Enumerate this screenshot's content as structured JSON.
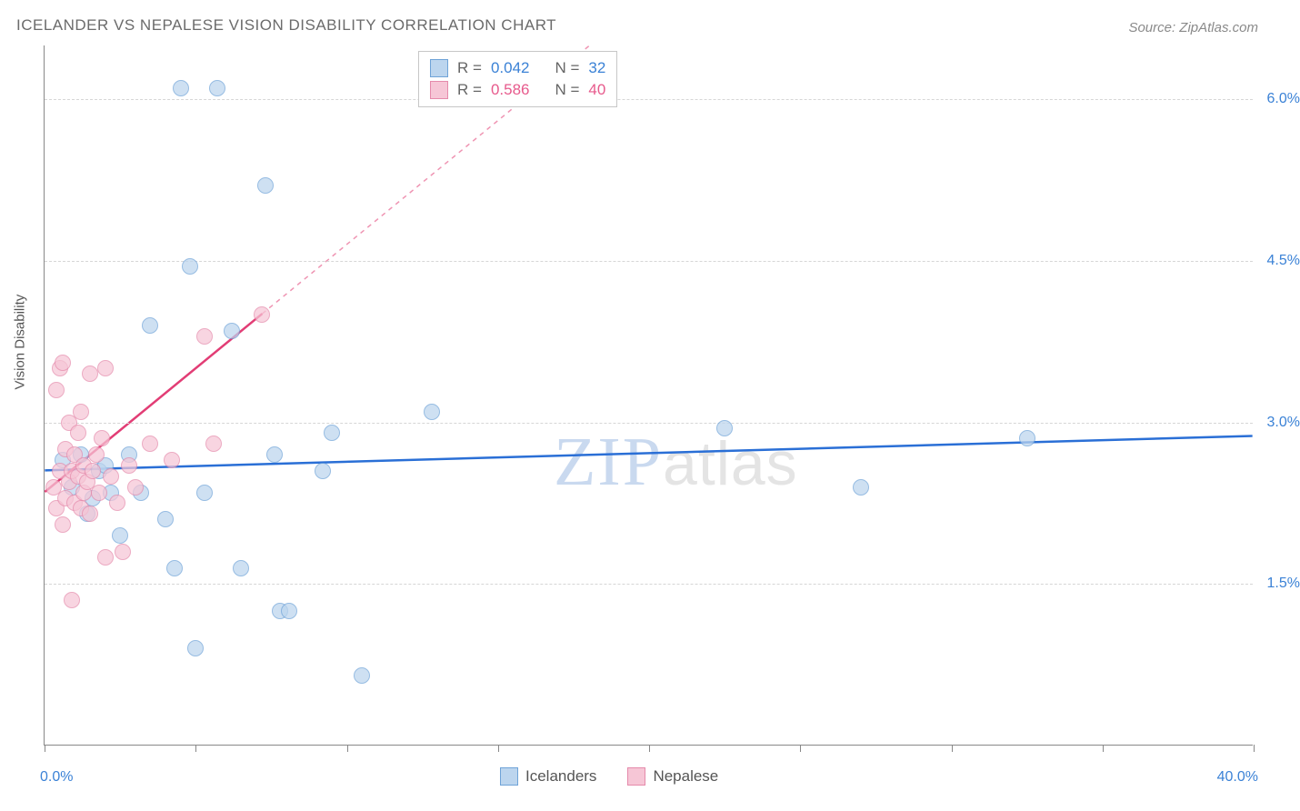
{
  "title": "ICELANDER VS NEPALESE VISION DISABILITY CORRELATION CHART",
  "source": "Source: ZipAtlas.com",
  "watermark": {
    "zip": "ZIP",
    "atlas": "atlas"
  },
  "chart": {
    "type": "scatter",
    "ylabel": "Vision Disability",
    "xlim": [
      0,
      40
    ],
    "ylim": [
      0,
      6.5
    ],
    "xtick_positions": [
      0,
      5,
      10,
      15,
      20,
      25,
      30,
      35,
      40
    ],
    "xtick_labels_shown": {
      "0": "0.0%",
      "40": "40.0%"
    },
    "ytick_positions": [
      1.5,
      3.0,
      4.5,
      6.0
    ],
    "ytick_labels": [
      "1.5%",
      "3.0%",
      "4.5%",
      "6.0%"
    ],
    "grid_color": "#d6d6d6",
    "background_color": "#ffffff",
    "axis_color": "#888888",
    "axis_label_color": "#3b82d6",
    "series": [
      {
        "name": "Icelanders",
        "r_value": "0.042",
        "n_value": "32",
        "point_fill": "#bcd5ee",
        "point_stroke": "#6fa3d8",
        "line_color": "#2a6fd6",
        "line_width": 2.5,
        "line_dash": "none",
        "line_y_intercept": 2.55,
        "line_slope": 0.008,
        "points": [
          [
            0.6,
            2.65
          ],
          [
            0.9,
            2.4
          ],
          [
            1.2,
            2.7
          ],
          [
            1.4,
            2.15
          ],
          [
            1.6,
            2.3
          ],
          [
            1.8,
            2.55
          ],
          [
            2.2,
            2.35
          ],
          [
            2.0,
            2.6
          ],
          [
            2.5,
            1.95
          ],
          [
            2.8,
            2.7
          ],
          [
            3.2,
            2.35
          ],
          [
            3.5,
            3.9
          ],
          [
            4.0,
            2.1
          ],
          [
            4.3,
            1.65
          ],
          [
            4.5,
            6.1
          ],
          [
            4.8,
            4.45
          ],
          [
            5.0,
            0.9
          ],
          [
            5.3,
            2.35
          ],
          [
            5.7,
            6.1
          ],
          [
            6.2,
            3.85
          ],
          [
            6.5,
            1.65
          ],
          [
            7.3,
            5.2
          ],
          [
            7.6,
            2.7
          ],
          [
            7.8,
            1.25
          ],
          [
            8.1,
            1.25
          ],
          [
            9.2,
            2.55
          ],
          [
            9.5,
            2.9
          ],
          [
            10.5,
            0.65
          ],
          [
            12.8,
            3.1
          ],
          [
            22.5,
            2.95
          ],
          [
            27.0,
            2.4
          ],
          [
            32.5,
            2.85
          ]
        ]
      },
      {
        "name": "Nepalese",
        "r_value": "0.586",
        "n_value": "40",
        "point_fill": "#f6c6d6",
        "point_stroke": "#e58aab",
        "line_color": "#e23d75",
        "line_width": 2.5,
        "line_solid_xmax": 7.2,
        "line_dash_after": "5,5",
        "line_y_intercept": 2.35,
        "line_slope": 0.23,
        "points": [
          [
            0.3,
            2.4
          ],
          [
            0.4,
            2.2
          ],
          [
            0.4,
            3.3
          ],
          [
            0.5,
            2.55
          ],
          [
            0.5,
            3.5
          ],
          [
            0.6,
            2.05
          ],
          [
            0.6,
            3.55
          ],
          [
            0.7,
            2.3
          ],
          [
            0.7,
            2.75
          ],
          [
            0.8,
            2.45
          ],
          [
            0.8,
            3.0
          ],
          [
            0.9,
            2.55
          ],
          [
            0.9,
            1.35
          ],
          [
            1.0,
            2.25
          ],
          [
            1.0,
            2.7
          ],
          [
            1.1,
            2.5
          ],
          [
            1.1,
            2.9
          ],
          [
            1.2,
            2.2
          ],
          [
            1.2,
            3.1
          ],
          [
            1.3,
            2.35
          ],
          [
            1.3,
            2.6
          ],
          [
            1.4,
            2.45
          ],
          [
            1.5,
            3.45
          ],
          [
            1.5,
            2.15
          ],
          [
            1.6,
            2.55
          ],
          [
            1.7,
            2.7
          ],
          [
            1.8,
            2.35
          ],
          [
            1.9,
            2.85
          ],
          [
            2.0,
            1.75
          ],
          [
            2.0,
            3.5
          ],
          [
            2.2,
            2.5
          ],
          [
            2.4,
            2.25
          ],
          [
            2.6,
            1.8
          ],
          [
            2.8,
            2.6
          ],
          [
            3.0,
            2.4
          ],
          [
            3.5,
            2.8
          ],
          [
            4.2,
            2.65
          ],
          [
            5.3,
            3.8
          ],
          [
            5.6,
            2.8
          ],
          [
            7.2,
            4.0
          ]
        ]
      }
    ]
  },
  "legend_top_labels": {
    "r": "R =",
    "n": "N ="
  },
  "legend_bottom": [
    {
      "label": "Icelanders",
      "fill": "#bcd5ee",
      "stroke": "#6fa3d8"
    },
    {
      "label": "Nepalese",
      "fill": "#f6c6d6",
      "stroke": "#e58aab"
    }
  ]
}
